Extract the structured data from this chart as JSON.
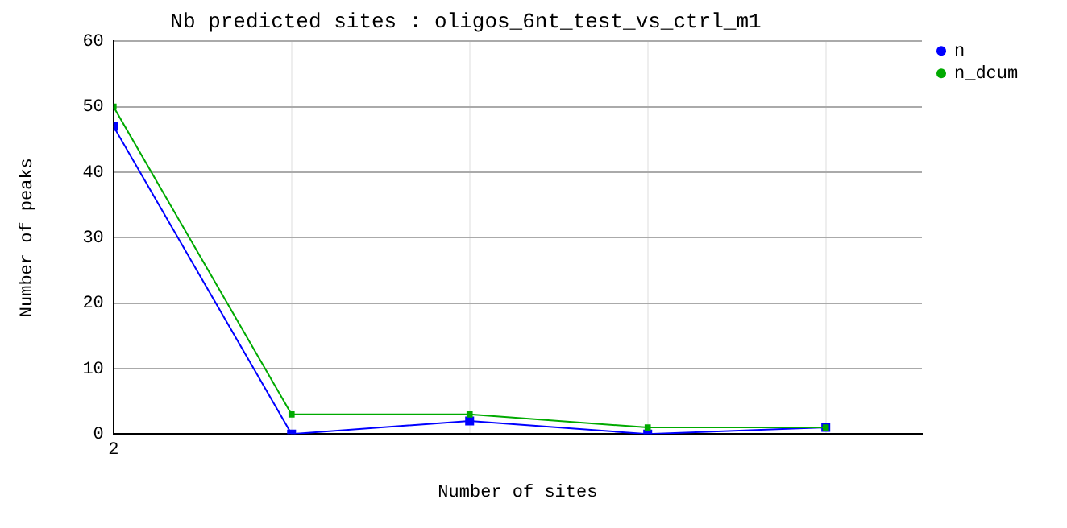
{
  "chart_data": {
    "type": "line",
    "title": "Nb predicted sites : oligos_6nt_test_vs_ctrl_m1",
    "xlabel": "Number of sites",
    "ylabel": "Number of peaks",
    "categories": [
      "2",
      null,
      null,
      null,
      null
    ],
    "series": [
      {
        "name": "n",
        "color": "#0000ff",
        "values": [
          47,
          0,
          2,
          0,
          1
        ]
      },
      {
        "name": "n_dcum",
        "color": "#00aa00",
        "values": [
          50,
          3,
          3,
          1,
          1
        ]
      }
    ],
    "ylim": [
      0,
      60
    ],
    "yticks": [
      0,
      10,
      20,
      30,
      40,
      50,
      60
    ],
    "grid": true,
    "legend": "top right",
    "marker": "square",
    "line_style": "solid"
  }
}
